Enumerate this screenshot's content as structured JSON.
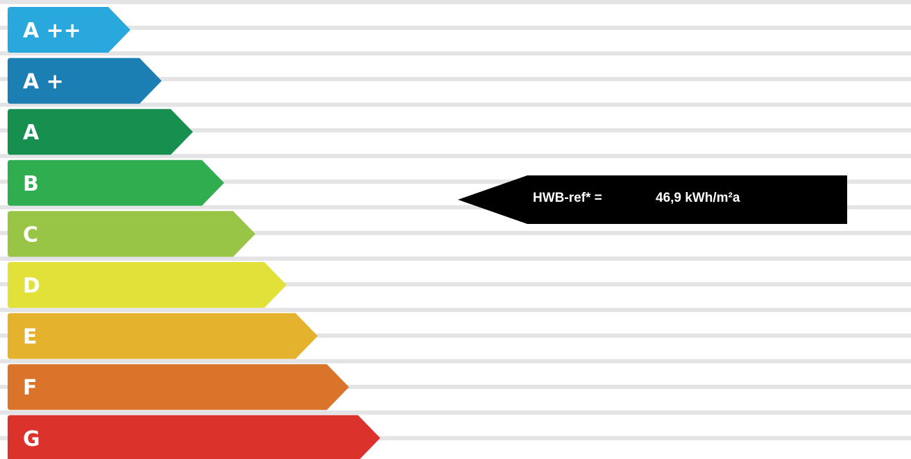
{
  "chart_data": {
    "type": "bar",
    "categories": [
      "A ++",
      "A +",
      "A",
      "B",
      "C",
      "D",
      "E",
      "F",
      "G"
    ],
    "colors": [
      "#29a8de",
      "#1c7fb4",
      "#168f4f",
      "#30ad4f",
      "#98c545",
      "#e2e13a",
      "#e5b22e",
      "#da742b",
      "#dc322c"
    ],
    "indicator": {
      "label": "HWB-ref* =",
      "value": "46,9 kWh/m²a",
      "category": "B",
      "color": "#000000"
    }
  }
}
